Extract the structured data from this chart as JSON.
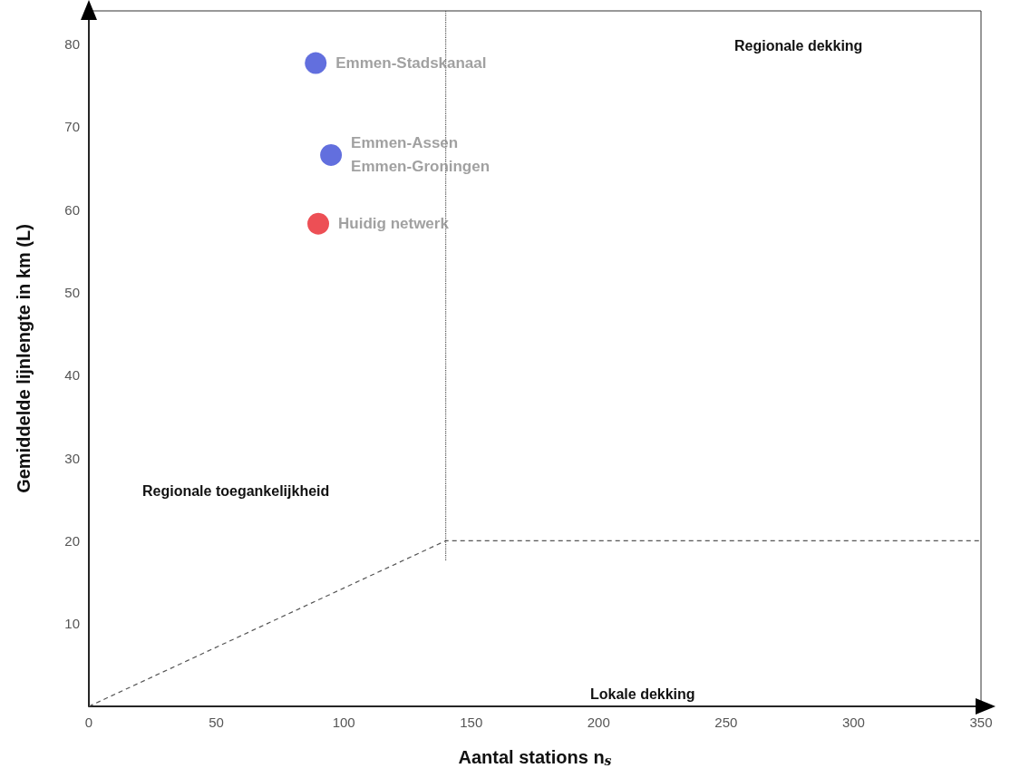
{
  "chart_data": {
    "type": "scatter",
    "xlabel": "Aantal stations n$_{s}$",
    "ylabel": "Gemiddelde lijnlengte in km (L)",
    "xlim": [
      0,
      350
    ],
    "xticks": [
      0,
      50,
      100,
      150,
      200,
      250,
      300,
      350
    ],
    "ylim": [
      0,
      84
    ],
    "yticks": [
      10,
      20,
      30,
      40,
      50,
      60,
      70,
      80
    ],
    "grid": false,
    "marker": "circle",
    "series": [
      {
        "name": "Emmen-Stadskanaal",
        "color": "#3b4bd6",
        "x": [
          89
        ],
        "values": [
          77.7
        ]
      },
      {
        "name": "Emmen-Assen\nEmmen-Groningen",
        "color": "#3b4bd6",
        "x": [
          95
        ],
        "values": [
          66.6
        ]
      },
      {
        "name": "Huidig netwerk",
        "color": "#e8232a",
        "x": [
          90
        ],
        "values": [
          58.3
        ]
      },
      {
        "type": "line",
        "color": "#555555",
        "line_style": "dashed",
        "marker": "none",
        "x": [
          0,
          140,
          350
        ],
        "values": [
          0,
          20,
          20
        ]
      },
      {
        "type": "line",
        "color": "#555555",
        "line_style": "dotted",
        "marker": "none",
        "x": [
          140,
          140
        ],
        "values": [
          84,
          17.5
        ]
      }
    ],
    "annotations": [
      "Regionale dekking",
      "Regionale toegankelijkheid",
      "Lokale dekking"
    ]
  }
}
